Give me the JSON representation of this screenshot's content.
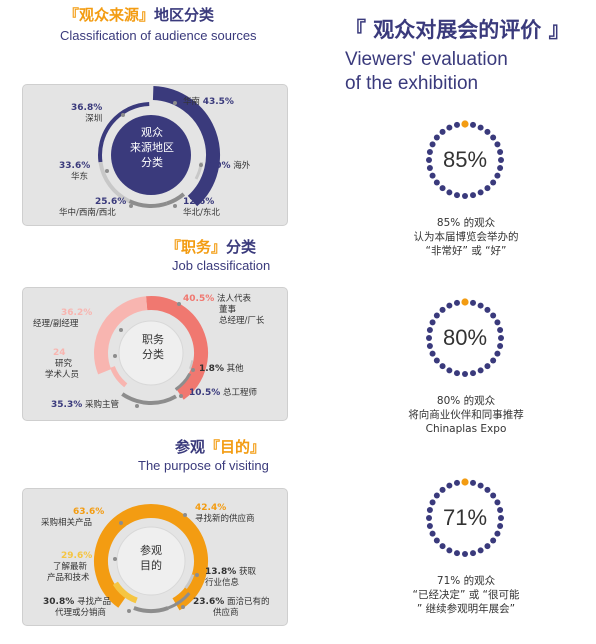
{
  "colors": {
    "navy": "#3a3a7c",
    "orange": "#f39c12",
    "salmon": "#f07870",
    "pink": "#f8b5b0",
    "gray": "#8d8d8d",
    "light_gray": "#c8c8c8"
  },
  "sec1": {
    "bracket_l": "『",
    "bracket_r": "』",
    "title_hl": "观众来源",
    "title_rest": "地区分类",
    "subtitle": "Classification of audience sources",
    "center": [
      "观众",
      "来源地区",
      "分类"
    ]
  },
  "sec2": {
    "bracket_l": "『",
    "bracket_r": "』",
    "title_hl": "职务",
    "title_rest": "分类",
    "subtitle": "Job classification",
    "center": [
      "职务",
      "分类"
    ]
  },
  "sec3": {
    "bracket_l": "『",
    "bracket_r": "』",
    "title_pre": "参观",
    "title_hl": "目的",
    "subtitle": "The purpose of visiting",
    "center": [
      "参观",
      "目的"
    ]
  },
  "right": {
    "title": "『 观众对展会的评价 』",
    "subtitle_l1": "Viewers' evaluation",
    "subtitle_l2": "of the exhibition"
  },
  "chart_data": [
    {
      "type": "pie",
      "title": "观众来源地区分类",
      "categories": [
        "华南",
        "深圳",
        "华东",
        "华中/西南/西北",
        "华北/东北",
        "海外"
      ],
      "values": [
        43.5,
        36.8,
        33.6,
        25.6,
        12.6,
        10
      ],
      "labels": {
        "c0": "华南",
        "v0": "43.5%",
        "v1": "36.8%",
        "c1": "深圳",
        "v2": "33.6%",
        "c2": "华东",
        "v3": "25.6%",
        "c3": "华中/西南/西北",
        "v4": "12.6%",
        "c4": "华北/东北",
        "v5": "10%",
        "c5": "海外"
      }
    },
    {
      "type": "pie",
      "title": "职务分类",
      "categories": [
        "法人代表 董事 总经理/厂长",
        "经理/副经理",
        "研究 学术人员",
        "采购主管",
        "总工程师",
        "其他"
      ],
      "values": [
        40.5,
        36.2,
        24,
        35.3,
        10.5,
        1.8
      ],
      "labels": {
        "v0": "40.5%",
        "c0a": "法人代表",
        "c0b": "董事",
        "c0c": "总经理/厂长",
        "v1": "36.2%",
        "c1": "经理/副经理",
        "v2": "24",
        "c2a": "研究",
        "c2b": "学术人员",
        "v3": "35.3%",
        "c3": "采购主管",
        "v4": "10.5%",
        "c4": "总工程师",
        "v5": "1.8%",
        "c5": "其他"
      }
    },
    {
      "type": "pie",
      "title": "参观目的",
      "categories": [
        "寻找新的供应商",
        "采购相关产品",
        "了解最新产品和技术",
        "寻找产品代理或分销商",
        "获取行业信息",
        "面洽已有的供应商"
      ],
      "values": [
        42.4,
        63.6,
        29.6,
        30.8,
        13.8,
        23.6
      ],
      "labels": {
        "v0": "42.4%",
        "c0": "寻找新的供应商",
        "v1": "63.6%",
        "c1": "采购相关产品",
        "v2": "29.6%",
        "c2a": "了解最新",
        "c2b": "产品和技术",
        "v3": "30.8%",
        "c3a": "寻找产品",
        "c3b": "代理或分销商",
        "v4": "13.8%",
        "c4a": "获取",
        "c4b": "行业信息",
        "v5": "23.6%",
        "c5a": "面洽已有的",
        "c5b": "供应商"
      }
    }
  ],
  "stats": [
    {
      "value": 85,
      "label": "85%",
      "lines": [
        "85% 的观众",
        "认为本届博览会举办的",
        "“非常好” 或 “好”"
      ]
    },
    {
      "value": 80,
      "label": "80%",
      "lines": [
        "80% 的观众",
        "将向商业伙伴和同事推荐",
        "Chinaplas Expo"
      ]
    },
    {
      "value": 71,
      "label": "71%",
      "lines": [
        "71% 的观众",
        "“已经决定” 或 “很可能",
        "” 继续参观明年展会”"
      ]
    }
  ]
}
